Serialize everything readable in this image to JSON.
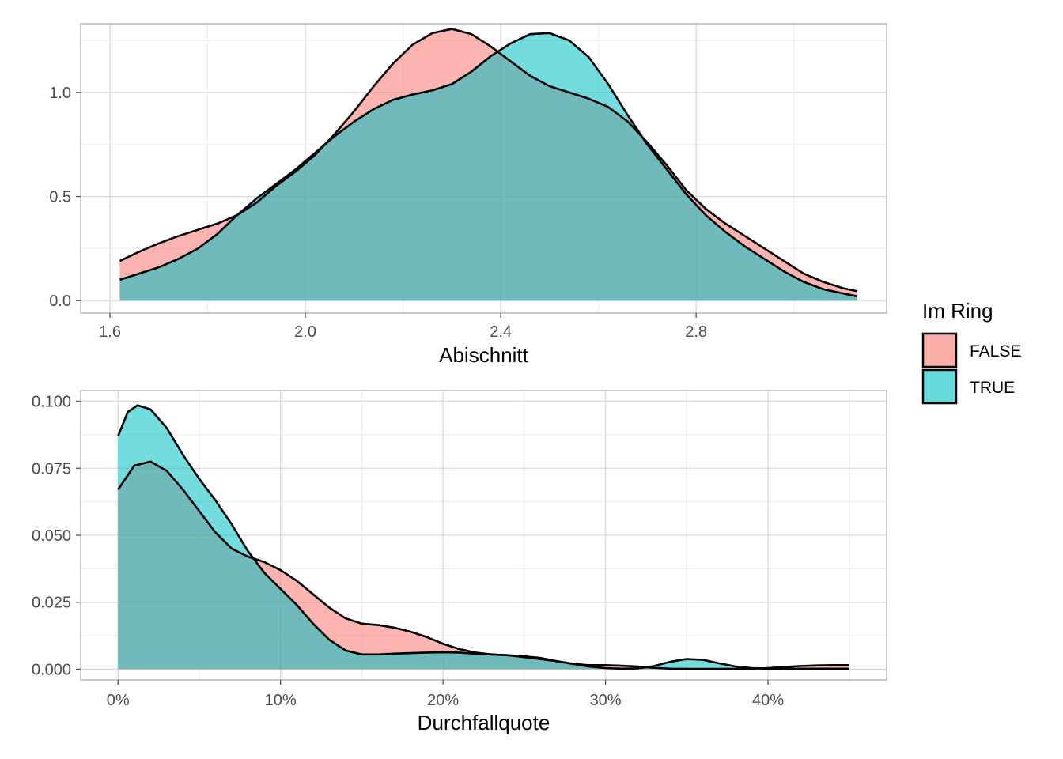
{
  "chart_data": [
    {
      "type": "area",
      "subtype": "density",
      "xlabel": "Abischnitt",
      "ylabel": "",
      "xlim": [
        1.54,
        3.19
      ],
      "ylim": [
        -0.06,
        1.33
      ],
      "x_ticks": [
        1.6,
        2.0,
        2.4,
        2.8
      ],
      "x_tick_labels": [
        "1.6",
        "2.0",
        "2.4",
        "2.8"
      ],
      "x_minor_ticks": [
        1.8,
        2.2,
        2.6,
        3.0
      ],
      "y_ticks": [
        0.0,
        0.5,
        1.0
      ],
      "y_tick_labels": [
        "0.0",
        "0.5",
        "1.0"
      ],
      "y_minor_ticks": [
        0.25,
        0.75,
        1.25
      ],
      "grid": true,
      "series": [
        {
          "name": "FALSE",
          "color": "#F8766D",
          "points": [
            [
              1.62,
              0.19
            ],
            [
              1.66,
              0.235
            ],
            [
              1.7,
              0.275
            ],
            [
              1.74,
              0.31
            ],
            [
              1.78,
              0.34
            ],
            [
              1.82,
              0.37
            ],
            [
              1.86,
              0.41
            ],
            [
              1.9,
              0.47
            ],
            [
              1.94,
              0.55
            ],
            [
              1.98,
              0.62
            ],
            [
              2.02,
              0.7
            ],
            [
              2.06,
              0.8
            ],
            [
              2.1,
              0.91
            ],
            [
              2.14,
              1.03
            ],
            [
              2.18,
              1.14
            ],
            [
              2.22,
              1.23
            ],
            [
              2.26,
              1.285
            ],
            [
              2.3,
              1.305
            ],
            [
              2.34,
              1.28
            ],
            [
              2.38,
              1.22
            ],
            [
              2.42,
              1.15
            ],
            [
              2.46,
              1.08
            ],
            [
              2.5,
              1.03
            ],
            [
              2.54,
              1.0
            ],
            [
              2.58,
              0.97
            ],
            [
              2.62,
              0.93
            ],
            [
              2.66,
              0.86
            ],
            [
              2.7,
              0.76
            ],
            [
              2.74,
              0.65
            ],
            [
              2.78,
              0.53
            ],
            [
              2.82,
              0.44
            ],
            [
              2.86,
              0.37
            ],
            [
              2.9,
              0.31
            ],
            [
              2.94,
              0.25
            ],
            [
              2.98,
              0.19
            ],
            [
              3.02,
              0.13
            ],
            [
              3.06,
              0.09
            ],
            [
              3.1,
              0.06
            ],
            [
              3.13,
              0.045
            ]
          ]
        },
        {
          "name": "TRUE",
          "color": "#00BFC4",
          "points": [
            [
              1.62,
              0.1
            ],
            [
              1.66,
              0.13
            ],
            [
              1.7,
              0.16
            ],
            [
              1.74,
              0.2
            ],
            [
              1.78,
              0.25
            ],
            [
              1.82,
              0.32
            ],
            [
              1.86,
              0.41
            ],
            [
              1.9,
              0.49
            ],
            [
              1.94,
              0.56
            ],
            [
              1.98,
              0.63
            ],
            [
              2.02,
              0.71
            ],
            [
              2.06,
              0.79
            ],
            [
              2.1,
              0.86
            ],
            [
              2.14,
              0.92
            ],
            [
              2.18,
              0.965
            ],
            [
              2.22,
              0.99
            ],
            [
              2.26,
              1.01
            ],
            [
              2.3,
              1.04
            ],
            [
              2.34,
              1.1
            ],
            [
              2.38,
              1.175
            ],
            [
              2.42,
              1.235
            ],
            [
              2.46,
              1.28
            ],
            [
              2.5,
              1.285
            ],
            [
              2.54,
              1.25
            ],
            [
              2.58,
              1.17
            ],
            [
              2.62,
              1.04
            ],
            [
              2.66,
              0.89
            ],
            [
              2.7,
              0.75
            ],
            [
              2.74,
              0.63
            ],
            [
              2.78,
              0.51
            ],
            [
              2.82,
              0.41
            ],
            [
              2.86,
              0.33
            ],
            [
              2.9,
              0.26
            ],
            [
              2.94,
              0.2
            ],
            [
              2.98,
              0.14
            ],
            [
              3.02,
              0.09
            ],
            [
              3.06,
              0.055
            ],
            [
              3.1,
              0.035
            ],
            [
              3.13,
              0.02
            ]
          ]
        }
      ]
    },
    {
      "type": "area",
      "subtype": "density",
      "xlabel": "Durchfallquote",
      "ylabel": "",
      "xlim": [
        -2.3,
        47.3
      ],
      "ylim": [
        -0.004,
        0.104
      ],
      "x_ticks": [
        0,
        10,
        20,
        30,
        40
      ],
      "x_tick_labels": [
        "0%",
        "10%",
        "20%",
        "30%",
        "40%"
      ],
      "x_minor_ticks": [
        5,
        15,
        25,
        35,
        45
      ],
      "y_ticks": [
        0.0,
        0.025,
        0.05,
        0.075,
        0.1
      ],
      "y_tick_labels": [
        "0.000",
        "0.025",
        "0.050",
        "0.075",
        "0.100"
      ],
      "y_minor_ticks": [
        0.0125,
        0.0375,
        0.0625,
        0.0875
      ],
      "grid": true,
      "series": [
        {
          "name": "FALSE",
          "color": "#F8766D",
          "points": [
            [
              0,
              0.067
            ],
            [
              1,
              0.076
            ],
            [
              2,
              0.0775
            ],
            [
              3,
              0.074
            ],
            [
              4,
              0.067
            ],
            [
              5,
              0.059
            ],
            [
              6,
              0.051
            ],
            [
              7,
              0.045
            ],
            [
              8,
              0.042
            ],
            [
              9,
              0.04
            ],
            [
              10,
              0.037
            ],
            [
              11,
              0.033
            ],
            [
              12,
              0.028
            ],
            [
              13,
              0.023
            ],
            [
              14,
              0.019
            ],
            [
              15,
              0.017
            ],
            [
              16,
              0.0165
            ],
            [
              17,
              0.0155
            ],
            [
              18,
              0.014
            ],
            [
              19,
              0.012
            ],
            [
              20,
              0.0095
            ],
            [
              21,
              0.0075
            ],
            [
              22,
              0.0062
            ],
            [
              23,
              0.0055
            ],
            [
              24,
              0.0052
            ],
            [
              25,
              0.0048
            ],
            [
              26,
              0.0042
            ],
            [
              27,
              0.003
            ],
            [
              28,
              0.002
            ],
            [
              29,
              0.0015
            ],
            [
              30,
              0.0015
            ],
            [
              31,
              0.0013
            ],
            [
              32,
              0.001
            ],
            [
              33,
              0.0005
            ],
            [
              34,
              0.0002
            ],
            [
              35,
              0.0001
            ],
            [
              36,
              0.0001
            ],
            [
              37,
              0.0001
            ],
            [
              38,
              0.0001
            ],
            [
              39,
              0.0002
            ],
            [
              40,
              0.0004
            ],
            [
              41,
              0.0008
            ],
            [
              42,
              0.0012
            ],
            [
              43,
              0.0014
            ],
            [
              44,
              0.0015
            ],
            [
              45,
              0.0015
            ]
          ]
        },
        {
          "name": "TRUE",
          "color": "#00BFC4",
          "points": [
            [
              0,
              0.087
            ],
            [
              0.6,
              0.096
            ],
            [
              1.2,
              0.0985
            ],
            [
              2,
              0.097
            ],
            [
              3,
              0.09
            ],
            [
              4,
              0.08
            ],
            [
              5,
              0.071
            ],
            [
              6,
              0.063
            ],
            [
              7,
              0.054
            ],
            [
              8,
              0.044
            ],
            [
              9,
              0.036
            ],
            [
              10,
              0.03
            ],
            [
              11,
              0.024
            ],
            [
              12,
              0.017
            ],
            [
              13,
              0.011
            ],
            [
              14,
              0.007
            ],
            [
              15,
              0.0055
            ],
            [
              16,
              0.0055
            ],
            [
              17,
              0.0058
            ],
            [
              18,
              0.006
            ],
            [
              19,
              0.0062
            ],
            [
              20,
              0.0063
            ],
            [
              21,
              0.0062
            ],
            [
              22,
              0.0058
            ],
            [
              23,
              0.0055
            ],
            [
              24,
              0.0052
            ],
            [
              25,
              0.0045
            ],
            [
              26,
              0.0038
            ],
            [
              27,
              0.003
            ],
            [
              28,
              0.002
            ],
            [
              29,
              0.001
            ],
            [
              30,
              0.0004
            ],
            [
              31,
              0.0002
            ],
            [
              32,
              0.0003
            ],
            [
              33,
              0.0012
            ],
            [
              34,
              0.0028
            ],
            [
              35,
              0.0038
            ],
            [
              36,
              0.0035
            ],
            [
              37,
              0.0022
            ],
            [
              38,
              0.001
            ],
            [
              39,
              0.0004
            ],
            [
              40,
              0.0002
            ],
            [
              41,
              0.0002
            ],
            [
              42,
              0.0002
            ],
            [
              43,
              0.0002
            ],
            [
              44,
              0.0002
            ],
            [
              45,
              0.0002
            ]
          ]
        }
      ]
    }
  ],
  "legend": {
    "title": "Im Ring",
    "entries": [
      {
        "label": "FALSE",
        "color": "#F8766D"
      },
      {
        "label": "TRUE",
        "color": "#00BFC4"
      }
    ],
    "placement": "right"
  },
  "colors": {
    "panel_border": "#b3b3b3",
    "grid_major": "#d9d9d9",
    "grid_minor": "#ebebeb",
    "tick_mark": "#4d4d4d",
    "curve_outline": "#000000"
  }
}
